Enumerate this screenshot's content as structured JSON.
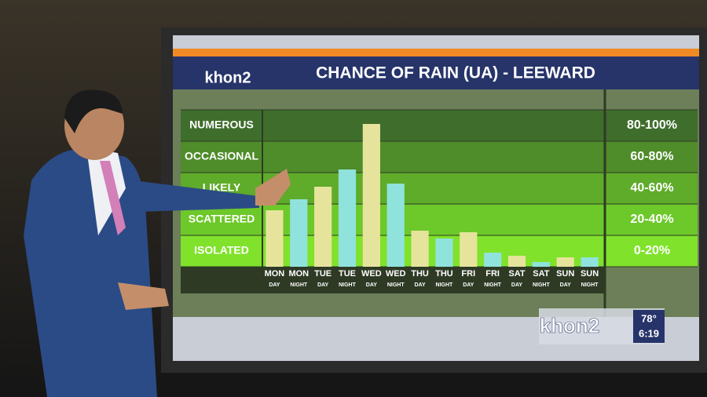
{
  "chart_data": {
    "type": "bar",
    "title": "CHANCE OF RAIN  (UA) - LEEWARD",
    "logo": "khon2",
    "categories": [
      "MON",
      "MON",
      "TUE",
      "TUE",
      "WED",
      "WED",
      "THU",
      "THU",
      "FRI",
      "FRI",
      "SAT",
      "SAT",
      "SUN",
      "SUN"
    ],
    "sublabels": [
      "DAY",
      "NIGHT",
      "DAY",
      "NIGHT",
      "DAY",
      "NIGHT",
      "DAY",
      "NIGHT",
      "DAY",
      "NIGHT",
      "DAY",
      "NIGHT",
      "DAY",
      "NIGHT"
    ],
    "values": [
      36,
      43,
      51,
      62,
      91,
      53,
      23,
      18,
      22,
      9,
      7,
      3,
      6,
      6
    ],
    "sublabel_colors": {
      "DAY": "#e6e49c",
      "NIGHT": "#8fe3dc"
    },
    "ylim": [
      0,
      100
    ],
    "yticks": [
      0,
      20,
      40,
      60,
      80,
      100
    ],
    "bands": [
      {
        "label": "NUMEROUS",
        "range": "80-100%",
        "color": "#3f6e2c"
      },
      {
        "label": "OCCASIONAL",
        "range": "60-80%",
        "color": "#4f8c2a"
      },
      {
        "label": "LIKELY",
        "range": "40-60%",
        "color": "#5fab2a"
      },
      {
        "label": "SCATTERED",
        "range": "20-40%",
        "color": "#6dc82a"
      },
      {
        "label": "ISOLATED",
        "range": "0-20%",
        "color": "#80e22b"
      }
    ]
  },
  "broadcast": {
    "logo": "khon2",
    "temperature": "78°",
    "time": "6:19"
  }
}
